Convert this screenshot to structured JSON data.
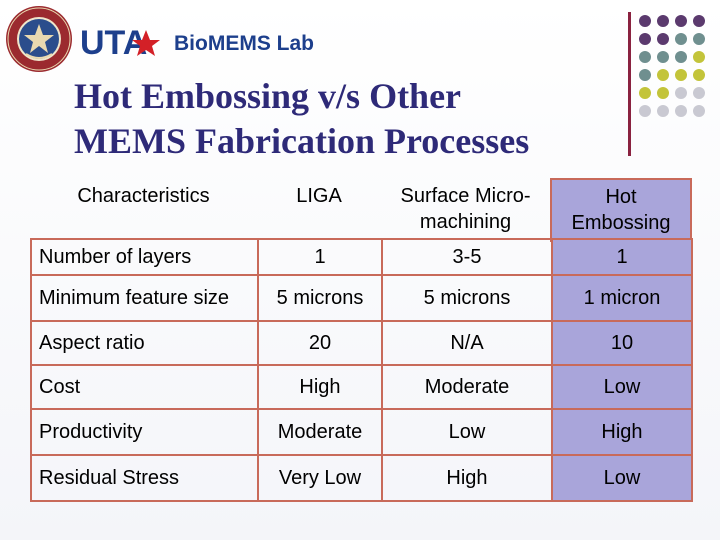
{
  "header": {
    "seal_text": "THE UNIVERSITY OF TEXAS AT ARLINGTON",
    "logo_text": "UTA",
    "lab_name": "BioMEMS Lab"
  },
  "title": {
    "line1": "Hot Embossing v/s Other",
    "line2": "MEMS Fabrication Processes"
  },
  "colors": {
    "title": "#2e2a78",
    "grid_border": "#c86a5a",
    "highlight_column": "#a9a5da",
    "divider": "#8a2240",
    "dot_purple": "#5b3a6e",
    "dot_teal": "#6f8f8f",
    "dot_lime": "#c3c43a",
    "dot_gray": "#c9c9d2"
  },
  "table": {
    "headers": [
      "Characteristics",
      "LIGA",
      "Surface Micro-machining",
      "Hot Embossing"
    ],
    "rows": [
      [
        "Number of layers",
        "1",
        "3-5",
        "1"
      ],
      [
        "Minimum feature size",
        "5 microns",
        "5 microns",
        "1 micron"
      ],
      [
        "Aspect ratio",
        "20",
        "N/A",
        "10"
      ],
      [
        "Cost",
        "High",
        "Moderate",
        "Low"
      ],
      [
        "Productivity",
        "Moderate",
        "Low",
        "High"
      ],
      [
        "Residual Stress",
        "Very Low",
        "High",
        "Low"
      ]
    ]
  }
}
